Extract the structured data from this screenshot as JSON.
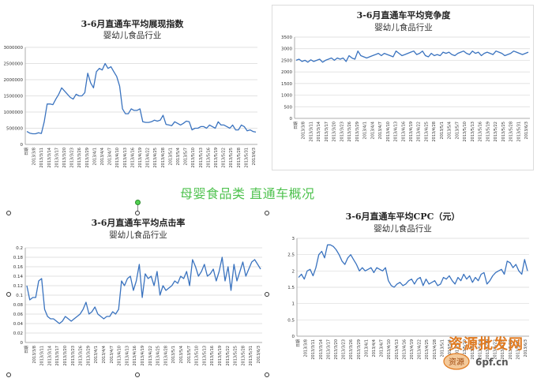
{
  "overlay_title": "母婴食品类 直通车概况",
  "watermark": {
    "text": "资源批发网",
    "url": "6pf.cn",
    "logo_text": "资源"
  },
  "colors": {
    "line": "#3a73bf",
    "grid": "#d9d9d9",
    "axis": "#9a9a9a",
    "overlay": "#4fc24f",
    "watermark": "#e07a20"
  },
  "chart_data": [
    {
      "id": "impressions",
      "type": "line",
      "title": "3-6月直通车平均展现指数",
      "subtitle": "婴幼儿食品行业",
      "ylim": [
        0,
        3000000
      ],
      "yticks": [
        0,
        500000,
        1000000,
        1500000,
        2000000,
        2500000,
        3000000
      ],
      "ytick_labels": [
        "0",
        "500000",
        "1000000",
        "1500000",
        "2000000",
        "2500000",
        "3000000"
      ],
      "xtick_labels": [
        "日期",
        "2013/3/8",
        "2013/3/11",
        "2013/3/14",
        "2013/3/17",
        "2013/3/20",
        "2013/3/23",
        "2013/3/26",
        "2013/3/29",
        "2013/4/1",
        "2013/4/4",
        "2013/4/7",
        "2013/4/10",
        "2013/4/13",
        "2013/4/16",
        "2013/4/19",
        "2013/4/22",
        "2013/4/25",
        "2013/4/28",
        "2013/5/1",
        "2013/5/4",
        "2013/5/7",
        "2013/5/10",
        "2013/5/13",
        "2013/5/16",
        "2013/5/19",
        "2013/5/22",
        "2013/5/25",
        "2013/5/28",
        "2013/5/31",
        "2013/6/3"
      ],
      "values": [
        400000,
        350000,
        330000,
        330000,
        360000,
        340000,
        700000,
        1250000,
        1250000,
        1230000,
        1400000,
        1550000,
        1750000,
        1650000,
        1550000,
        1450000,
        1400000,
        1550000,
        1500000,
        1500000,
        1600000,
        2200000,
        1900000,
        1750000,
        2250000,
        2350000,
        2300000,
        2500000,
        2350000,
        2400000,
        2250000,
        2100000,
        1800000,
        1100000,
        950000,
        950000,
        1100000,
        1050000,
        1050000,
        1100000,
        700000,
        680000,
        680000,
        700000,
        750000,
        720000,
        750000,
        900000,
        620000,
        600000,
        580000,
        700000,
        650000,
        600000,
        650000,
        720000,
        700000,
        450000,
        500000,
        500000,
        550000,
        550000,
        500000,
        600000,
        550000,
        500000,
        700000,
        600000,
        600000,
        550000,
        500000,
        600000,
        450000,
        450000,
        600000,
        550000,
        420000,
        450000,
        400000,
        380000
      ]
    },
    {
      "id": "competition",
      "type": "line",
      "title": "3-6月直通车平均竞争度",
      "subtitle": "婴幼儿食品行业",
      "ylim": [
        0,
        3500
      ],
      "yticks": [
        0,
        500,
        1000,
        1500,
        2000,
        2500,
        3000,
        3500
      ],
      "ytick_labels": [
        "0",
        "500",
        "1000",
        "1500",
        "2000",
        "2500",
        "3000",
        "3500"
      ],
      "xtick_labels": [
        "日期",
        "2013/3/8",
        "2013/3/11",
        "2013/3/14",
        "2013/3/17",
        "2013/3/20",
        "2013/3/23",
        "2013/3/26",
        "2013/3/29",
        "2013/4/1",
        "2013/4/4",
        "2013/4/7",
        "2013/4/10",
        "2013/4/13",
        "2013/4/16",
        "2013/4/19",
        "2013/4/22",
        "2013/4/25",
        "2013/4/28",
        "2013/5/1",
        "2013/5/4",
        "2013/5/7",
        "2013/5/10",
        "2013/5/13",
        "2013/5/16",
        "2013/5/19",
        "2013/5/22",
        "2013/5/25",
        "2013/5/28",
        "2013/5/31",
        "2013/6/3"
      ],
      "values": [
        2500,
        2550,
        2450,
        2500,
        2420,
        2520,
        2450,
        2500,
        2550,
        2420,
        2500,
        2550,
        2600,
        2500,
        2600,
        2550,
        2600,
        2450,
        2700,
        2600,
        2550,
        2900,
        2700,
        2650,
        2600,
        2650,
        2700,
        2750,
        2800,
        2700,
        2800,
        2750,
        2700,
        2650,
        2900,
        2800,
        2700,
        2750,
        2800,
        2850,
        2900,
        2750,
        2800,
        2900,
        2700,
        2650,
        2800,
        2700,
        2750,
        2700,
        2850,
        2800,
        2850,
        2750,
        2700,
        2800,
        2850,
        2900,
        2800,
        2750,
        2900,
        2800,
        2850,
        2700,
        2800,
        2850,
        2800,
        2750,
        2900,
        2850,
        2800,
        2700,
        2750,
        2800,
        2900,
        2850,
        2800,
        2750,
        2800,
        2850
      ]
    },
    {
      "id": "ctr",
      "type": "line",
      "title": "3-6月直通车平均点击率",
      "subtitle": "婴幼儿食品行业",
      "ylim": [
        0,
        0.2
      ],
      "yticks": [
        0,
        0.02,
        0.04,
        0.06,
        0.08,
        0.1,
        0.12,
        0.14,
        0.16,
        0.18,
        0.2
      ],
      "ytick_labels": [
        "0",
        "0.02",
        "0.04",
        "0.06",
        "0.08",
        "0.1",
        "0.12",
        "0.14",
        "0.16",
        "0.18",
        "0.2"
      ],
      "xtick_labels": [
        "日期",
        "2013/3/8",
        "2013/3/11",
        "2013/3/14",
        "2013/3/17",
        "2013/3/20",
        "2013/3/23",
        "2013/3/26",
        "2013/3/29",
        "2013/4/1",
        "2013/4/4",
        "2013/4/7",
        "2013/4/10",
        "2013/4/13",
        "2013/4/16",
        "2013/4/19",
        "2013/4/22",
        "2013/4/25",
        "2013/4/28",
        "2013/5/1",
        "2013/5/4",
        "2013/5/7",
        "2013/5/10",
        "2013/5/13",
        "2013/5/16",
        "2013/5/19",
        "2013/5/22",
        "2013/5/25",
        "2013/5/28",
        "2013/5/31",
        "2013/6/3"
      ],
      "values": [
        0.12,
        0.09,
        0.095,
        0.095,
        0.13,
        0.135,
        0.07,
        0.055,
        0.05,
        0.05,
        0.045,
        0.04,
        0.045,
        0.055,
        0.05,
        0.045,
        0.05,
        0.055,
        0.06,
        0.07,
        0.085,
        0.06,
        0.065,
        0.075,
        0.06,
        0.055,
        0.05,
        0.055,
        0.055,
        0.065,
        0.06,
        0.07,
        0.13,
        0.12,
        0.135,
        0.14,
        0.11,
        0.13,
        0.165,
        0.095,
        0.145,
        0.135,
        0.14,
        0.12,
        0.15,
        0.1,
        0.12,
        0.11,
        0.115,
        0.12,
        0.13,
        0.125,
        0.14,
        0.135,
        0.15,
        0.12,
        0.175,
        0.16,
        0.14,
        0.15,
        0.165,
        0.14,
        0.145,
        0.155,
        0.13,
        0.15,
        0.18,
        0.13,
        0.16,
        0.11,
        0.165,
        0.13,
        0.15,
        0.17,
        0.14,
        0.155,
        0.17,
        0.175,
        0.165,
        0.155
      ]
    },
    {
      "id": "cpc",
      "type": "line",
      "title": "3-6月直通车平均CPC（元）",
      "subtitle": "婴幼儿食品行业",
      "ylim": [
        0,
        3
      ],
      "yticks": [
        0,
        0.5,
        1,
        1.5,
        2,
        2.5,
        3
      ],
      "ytick_labels": [
        "0",
        "0.5",
        "1",
        "1.5",
        "2",
        "2.5",
        "3"
      ],
      "xtick_labels": [
        "日期",
        "2013/3/8",
        "2013/3/11",
        "2013/3/14",
        "2013/3/17",
        "2013/3/20",
        "2013/3/23",
        "2013/3/26",
        "2013/3/29",
        "2013/4/1",
        "2013/4/4",
        "2013/4/7",
        "2013/4/10",
        "2013/4/13",
        "2013/4/16",
        "2013/4/19",
        "2013/4/22",
        "2013/4/25",
        "2013/4/28",
        "2013/5/1",
        "2013/5/4",
        "2013/5/7",
        "2013/5/10",
        "2013/5/13",
        "2013/5/16",
        "2013/5/19",
        "2013/5/22",
        "2013/5/25",
        "2013/5/28",
        "2013/5/31",
        "2013/6/3"
      ],
      "values": [
        1.8,
        1.9,
        1.75,
        2.0,
        2.05,
        1.85,
        2.1,
        2.5,
        2.6,
        2.4,
        2.8,
        2.8,
        2.75,
        2.65,
        2.5,
        2.3,
        2.2,
        2.4,
        2.5,
        2.35,
        2.2,
        2.0,
        2.1,
        2.0,
        2.05,
        2.1,
        1.95,
        2.1,
        2.05,
        2.0,
        2.1,
        1.7,
        1.55,
        1.5,
        1.6,
        1.65,
        1.55,
        1.6,
        1.7,
        1.75,
        1.6,
        1.75,
        1.8,
        1.55,
        1.75,
        1.6,
        1.65,
        1.7,
        1.55,
        1.6,
        1.8,
        1.75,
        1.85,
        1.7,
        1.6,
        1.8,
        1.7,
        1.9,
        1.75,
        1.85,
        1.65,
        1.8,
        1.7,
        1.9,
        1.95,
        1.6,
        1.7,
        1.85,
        1.95,
        2.0,
        2.05,
        1.9,
        2.3,
        2.25,
        2.1,
        2.2,
        2.0,
        1.9,
        2.35,
        2.0
      ]
    }
  ]
}
